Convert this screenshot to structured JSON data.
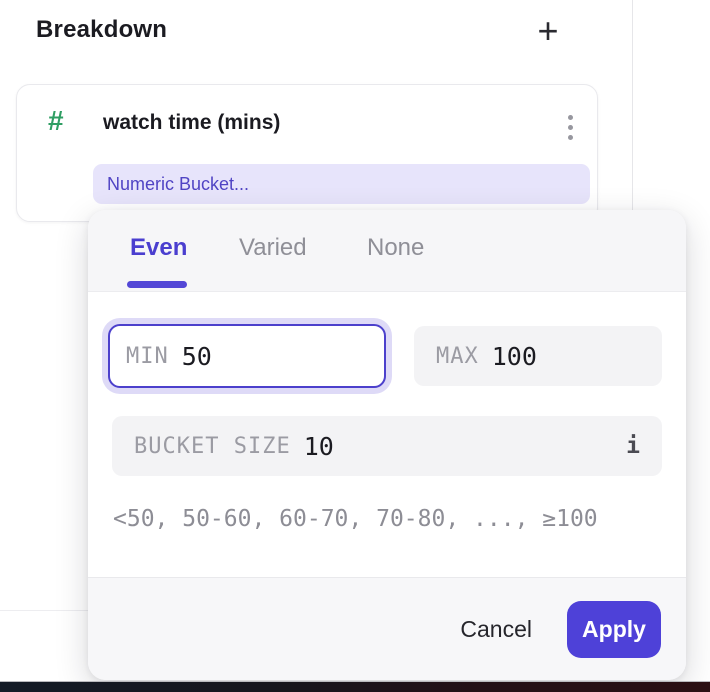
{
  "header": {
    "title": "Breakdown",
    "add_button": "+"
  },
  "breakdown_card": {
    "type_icon": "#",
    "property_name": "watch time (mins)",
    "bucketing_value": "Numeric Bucket..."
  },
  "bucketing_popover": {
    "tabs": [
      {
        "label": "Even",
        "active": true
      },
      {
        "label": "Varied",
        "active": false
      },
      {
        "label": "None",
        "active": false
      }
    ],
    "min_field": {
      "label": "MIN",
      "value": "50",
      "focused": true
    },
    "max_field": {
      "label": "MAX",
      "value": "100"
    },
    "bucket_size_field": {
      "label": "BUCKET SIZE",
      "value": "10",
      "info_icon": "i"
    },
    "preview": "<50, 50-60, 60-70, 70-80, ..., ≥100",
    "cancel_label": "Cancel",
    "apply_label": "Apply"
  },
  "colors": {
    "accent_purple": "#4e41d8",
    "active_tab_purple": "#4a3ecf",
    "tab_underline": "#5347d6",
    "pill_bg": "#e7e4fb",
    "pill_text": "#5044c4",
    "numeric_type_green": "#2f9e63",
    "input_bg": "#f3f3f5",
    "focus_ring": "#dedaf7",
    "focus_border": "#4c40cc",
    "popover_header_bg": "#f6f6f8",
    "popover_footer_bg": "#f7f7f9",
    "bottom_bar_left": "#141b26",
    "bottom_bar_right": "#2b0f13"
  }
}
